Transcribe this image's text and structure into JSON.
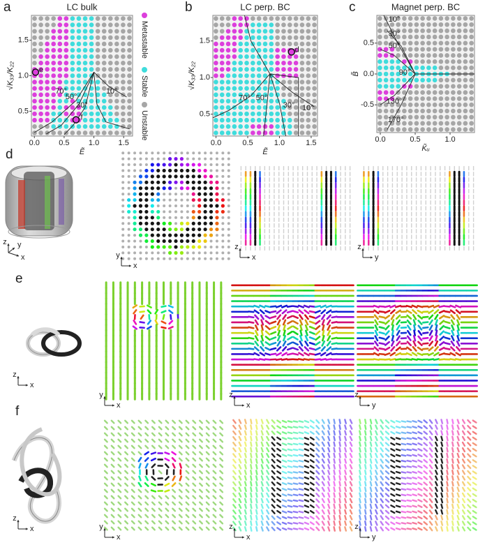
{
  "figure": {
    "phase_diagrams": [
      {
        "label": "a",
        "title": "LC bulk",
        "xlabel": "Ẽ",
        "ylabel": "√K₃₃/K₂₂",
        "xlim": [
          -0.05,
          1.65
        ],
        "ylim": [
          0.15,
          1.85
        ],
        "xticks": [
          {
            "value": 0,
            "label": "0.0"
          },
          0.5,
          {
            "value": 1,
            "label": "1.0"
          },
          1.5
        ],
        "yticks": [
          0.5,
          {
            "value": 1,
            "label": "1.0"
          },
          1.5
        ],
        "annotations": [
          "70°",
          "50°",
          "30°",
          "10°",
          "e",
          "f"
        ]
      },
      {
        "label": "b",
        "title": "LC perp. BC",
        "xlabel": "Ẽ",
        "ylabel": "√K₃₃/K₂₂",
        "xlim": [
          -0.05,
          1.6
        ],
        "ylim": [
          0.2,
          1.85
        ],
        "xticks": [
          {
            "value": 0,
            "label": "0.0"
          },
          0.5,
          {
            "value": 1,
            "label": "1.0"
          },
          1.5
        ],
        "yticks": [
          0.5,
          {
            "value": 1,
            "label": "1.0"
          },
          1.5
        ],
        "annotations": [
          "70°",
          "50°",
          "30°",
          "10°",
          "d"
        ]
      },
      {
        "label": "c",
        "title": "Magnet perp. BC",
        "xlabel": "K̃ᵤ",
        "ylabel": "B̃",
        "xlim": [
          -0.05,
          1.35
        ],
        "ylim": [
          -0.95,
          0.95
        ],
        "xticks": [
          {
            "value": 0,
            "label": "0.0"
          },
          0.5,
          {
            "value": 1,
            "label": "1.0"
          }
        ],
        "yticks": [
          -0.5,
          {
            "value": 0,
            "label": "0.0"
          },
          0.5
        ],
        "annotations": [
          "10°",
          "30°",
          "50°",
          "90°",
          "130°",
          "170°"
        ]
      }
    ],
    "legend": [
      {
        "name": "Metastable",
        "color": "#dc3fdc"
      },
      {
        "name": "Stable",
        "color": "#3fdcdc"
      },
      {
        "name": "Unstable",
        "color": "#a6a6a6"
      }
    ],
    "rows": [
      {
        "label": "d",
        "axes": [
          [
            "z",
            "y",
            "x"
          ],
          [
            "y",
            "x"
          ],
          [
            "z",
            "x"
          ],
          [
            "z",
            "y"
          ]
        ]
      },
      {
        "label": "e",
        "axes": [
          [
            "z",
            "x"
          ],
          [
            "y",
            "x"
          ],
          [
            "z",
            "x"
          ],
          [
            "z",
            "y"
          ]
        ]
      },
      {
        "label": "f",
        "axes": [
          [
            "z",
            "x"
          ],
          [
            "y",
            "x"
          ],
          [
            "z",
            "x"
          ],
          [
            "z",
            "y"
          ]
        ]
      }
    ]
  }
}
